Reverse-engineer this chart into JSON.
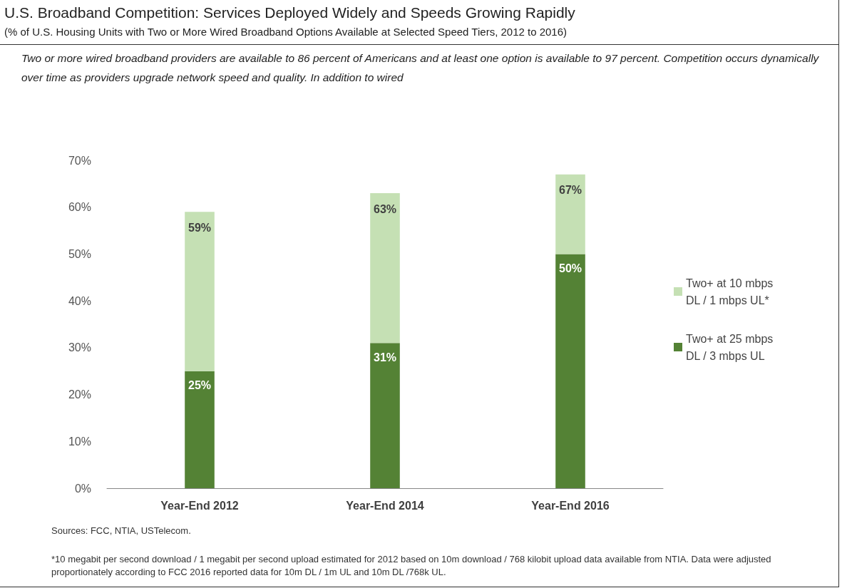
{
  "chart_data": {
    "type": "bar",
    "stacked": true,
    "title": "U.S. Broadband Competition: Services Deployed Widely and Speeds Growing Rapidly",
    "subtitle": "(% of U.S. Housing Units with Two or More Wired Broadband Options Available at Selected Speed Tiers, 2012 to 2016)",
    "annotations": [
      "Two or more wired broadband providers are available to 86 percent of Americans and at least one option is available to 97 percent. Competition occurs dynamically over time as providers upgrade network speed and quality. In addition to wired",
      "Sources: FCC, NTIA, USTelecom.",
      "*10 megabit per second download / 1 megabit per second upload estimated for 2012  based on 10m download / 768 kilobit upload data available from NTIA.  Data were adjusted proportionately according to FCC 2016 reported data for 10m DL / 1m UL and 10m DL /768k UL."
    ],
    "categories": [
      "Year-End 2012",
      "Year-End 2014",
      "Year-End 2016"
    ],
    "series": [
      {
        "name": "Two+ at 25 mbps DL / 3 mbps UL",
        "color": "#548235",
        "values": [
          25,
          31,
          50
        ],
        "value_labels": [
          "25%",
          "31%",
          "50%"
        ]
      },
      {
        "name": "Two+ at 10 mbps DL / 1 mbps UL*",
        "color": "#c5e0b4",
        "values": [
          34,
          32,
          17
        ]
      }
    ],
    "totals": [
      "59%",
      "63%",
      "67%"
    ],
    "ylim": [
      0,
      70
    ],
    "yticks": [
      {
        "value": 0,
        "label": "0%"
      },
      {
        "value": 10,
        "label": "10%"
      },
      {
        "value": 20,
        "label": "20%"
      },
      {
        "value": 30,
        "label": "30%"
      },
      {
        "value": 40,
        "label": "40%"
      },
      {
        "value": 50,
        "label": "50%"
      },
      {
        "value": 60,
        "label": "60%"
      },
      {
        "value": 70,
        "label": "70%"
      }
    ],
    "grid": false,
    "legend": "right"
  }
}
